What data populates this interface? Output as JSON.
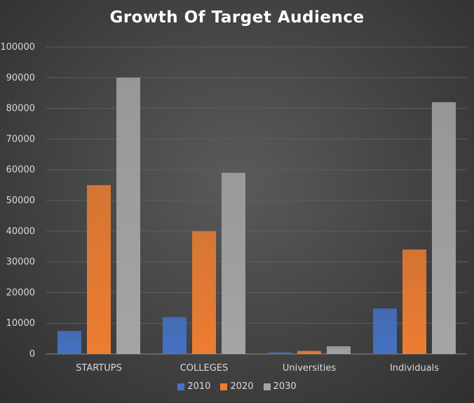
{
  "chart_data": {
    "type": "bar",
    "title": "Growth Of Target Audience",
    "categories": [
      "STARTUPS",
      "COLLEGES",
      "Universities",
      "Individuals"
    ],
    "series": [
      {
        "name": "2010",
        "color": "#4472c4",
        "values": [
          7500,
          12000,
          500,
          14800
        ]
      },
      {
        "name": "2020",
        "color": "#ed7d31",
        "values": [
          55000,
          40000,
          1000,
          34000
        ]
      },
      {
        "name": "2030",
        "color": "#a5a5a5",
        "values": [
          90000,
          59000,
          2500,
          82000
        ]
      }
    ],
    "y_ticks": [
      "0",
      "10000",
      "20000",
      "30000",
      "40000",
      "50000",
      "60000",
      "70000",
      "80000",
      "90000",
      "100000"
    ],
    "ylim": [
      0,
      100000
    ],
    "grid": true,
    "legend_position": "bottom"
  }
}
